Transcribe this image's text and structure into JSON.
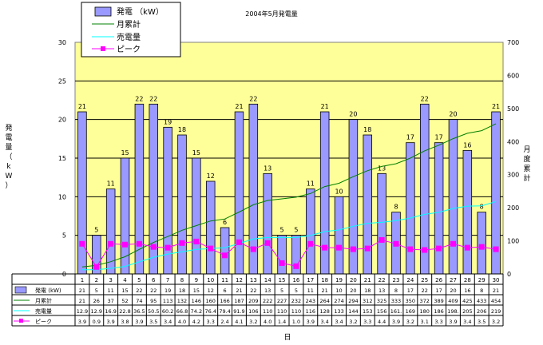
{
  "chart_data": {
    "type": "bar",
    "title": "2004年5月発電量",
    "xlabel": "日",
    "ylabel_left": "発電量（kW）",
    "ylabel_right": "月度累計",
    "ylim_left": [
      0,
      30
    ],
    "yticks_left": [
      "0",
      "5",
      "10",
      "15",
      "20",
      "25",
      "30"
    ],
    "ylim_right": [
      0,
      700
    ],
    "yticks_right": [
      "0",
      "100",
      "200",
      "300",
      "400",
      "500",
      "600",
      "700"
    ],
    "categories": [
      "1",
      "2",
      "3",
      "4",
      "5",
      "6",
      "7",
      "8",
      "9",
      "10",
      "11",
      "12",
      "13",
      "14",
      "15",
      "16",
      "17",
      "18",
      "19",
      "20",
      "21",
      "22",
      "23",
      "24",
      "25",
      "26",
      "27",
      "28",
      "29",
      "30"
    ],
    "grid": true,
    "legend_position": "top-left",
    "series": [
      {
        "name": "発電 （kW）",
        "table_label": "発電 (kW)",
        "kind": "bar",
        "axis": "left",
        "color": "#9999ff",
        "values": [
          21,
          5,
          11,
          15,
          22,
          22,
          19,
          18,
          15,
          12,
          6,
          21,
          22,
          13,
          5,
          5,
          11,
          21,
          10,
          20,
          18,
          13,
          8,
          17,
          22,
          17,
          20,
          16,
          8,
          21
        ],
        "table": [
          "21",
          "5",
          "11",
          "15",
          "22",
          "22",
          "19",
          "18",
          "15",
          "12",
          "6",
          "21",
          "22",
          "13",
          "5",
          "5",
          "11",
          "21",
          "10",
          "20",
          "18",
          "13",
          "8",
          "17",
          "22",
          "17",
          "20",
          "16",
          "8",
          "21"
        ]
      },
      {
        "name": "月累計",
        "kind": "line",
        "axis": "right",
        "color": "#008000",
        "values": [
          21,
          26,
          37,
          52,
          74,
          95,
          113,
          132,
          146,
          160,
          166,
          187,
          209,
          222,
          227,
          232,
          243,
          264,
          274,
          294,
          312,
          325,
          333,
          350,
          372,
          389,
          409,
          425,
          433,
          454
        ],
        "table": [
          "21",
          "26",
          "37",
          "52",
          "74",
          "95",
          "113",
          "132",
          "146",
          "160",
          "166",
          "187",
          "209",
          "222",
          "227",
          "232",
          "243",
          "264",
          "274",
          "294",
          "312",
          "325",
          "333",
          "350",
          "372",
          "389",
          "409",
          "425",
          "433",
          "454"
        ]
      },
      {
        "name": "売電量",
        "kind": "line",
        "axis": "right",
        "color": "#00ffff",
        "values": [
          12.9,
          12.9,
          16.9,
          22.8,
          36.5,
          50.5,
          60.2,
          66.8,
          74.2,
          76.4,
          79.4,
          91.9,
          106,
          110,
          110,
          110,
          116,
          128,
          133,
          144,
          153,
          156,
          161,
          169,
          180,
          186,
          198,
          205,
          206,
          219
        ],
        "table": [
          "12.9",
          "12.9",
          "16.9",
          "22.8",
          "36.5",
          "50.5",
          "60.2",
          "66.8",
          "74.2",
          "76.4",
          "79.4",
          "91.9",
          "106",
          "110",
          "110",
          "110",
          "116",
          "128",
          "133",
          "144",
          "153",
          "156",
          "161.",
          "169",
          "180",
          "186",
          "198.",
          "205",
          "206",
          "219"
        ]
      },
      {
        "name": "ピーク",
        "kind": "line",
        "axis": "left",
        "color": "#ff00ff",
        "values": [
          3.9,
          0.9,
          3.9,
          3.8,
          3.9,
          3.5,
          3.4,
          4.0,
          4.2,
          3.3,
          2.4,
          4.1,
          3.2,
          4.0,
          1.4,
          1.0,
          3.9,
          3.4,
          3.4,
          3.2,
          3.3,
          4.4,
          3.9,
          3.2,
          3.1,
          3.3,
          3.9,
          3.4,
          3.5,
          3.2
        ],
        "table": [
          "3.9",
          "0.9",
          "3.9",
          "3.8",
          "3.9",
          "3.5",
          "3.4",
          "4.0",
          "4.2",
          "3.3",
          "2.4",
          "4.1",
          "3.2",
          "4.0",
          "1.4",
          "1.0",
          "3.9",
          "3.4",
          "3.4",
          "3.2",
          "3.3",
          "4.4",
          "3.9",
          "3.2",
          "3.1",
          "3.3",
          "3.9",
          "3.4",
          "3.5",
          "3.2"
        ]
      }
    ]
  }
}
